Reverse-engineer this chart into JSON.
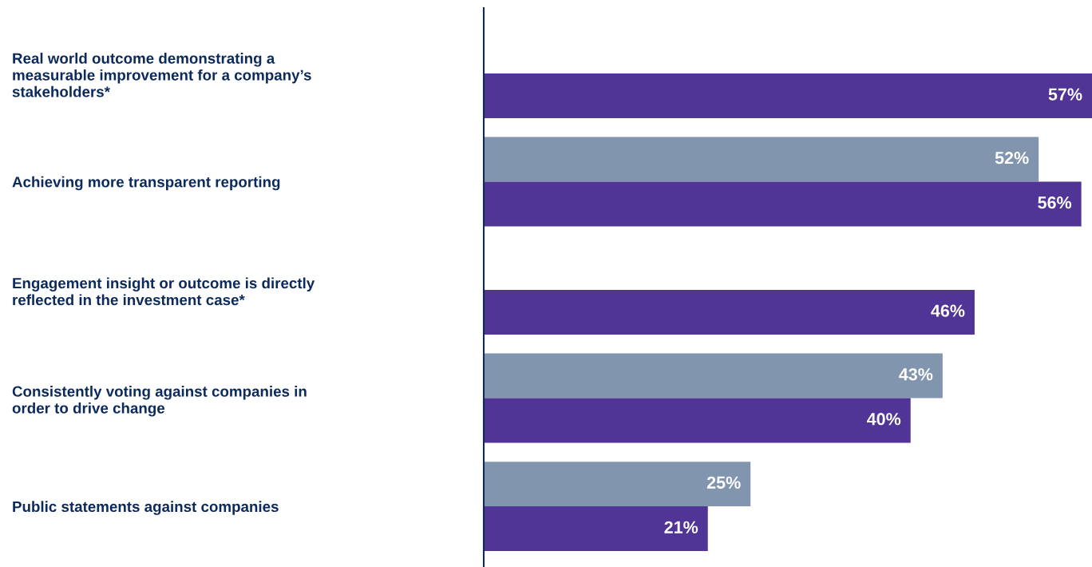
{
  "chart_data": {
    "type": "bar",
    "orientation": "horizontal",
    "categories": [
      "Real world outcome demonstrating a\nmeasurable improvement for a company’s\nstakeholders*",
      "Achieving more transparent reporting",
      "Engagement insight or outcome is directly\nreflected in the investment case*",
      "Consistently voting against companies in\norder to drive change",
      "Public statements against companies"
    ],
    "series": [
      {
        "color": "#8196ae",
        "values": [
          null,
          52,
          null,
          43,
          25
        ],
        "value_labels": [
          null,
          "52%",
          null,
          "43%",
          "25%"
        ]
      },
      {
        "color": "#503596",
        "values": [
          57,
          56,
          46,
          40,
          21
        ],
        "value_labels": [
          "57%",
          "56%",
          "46%",
          "40%",
          "21%"
        ]
      }
    ],
    "tick_labels": "y",
    "grid": false,
    "legend": false
  }
}
